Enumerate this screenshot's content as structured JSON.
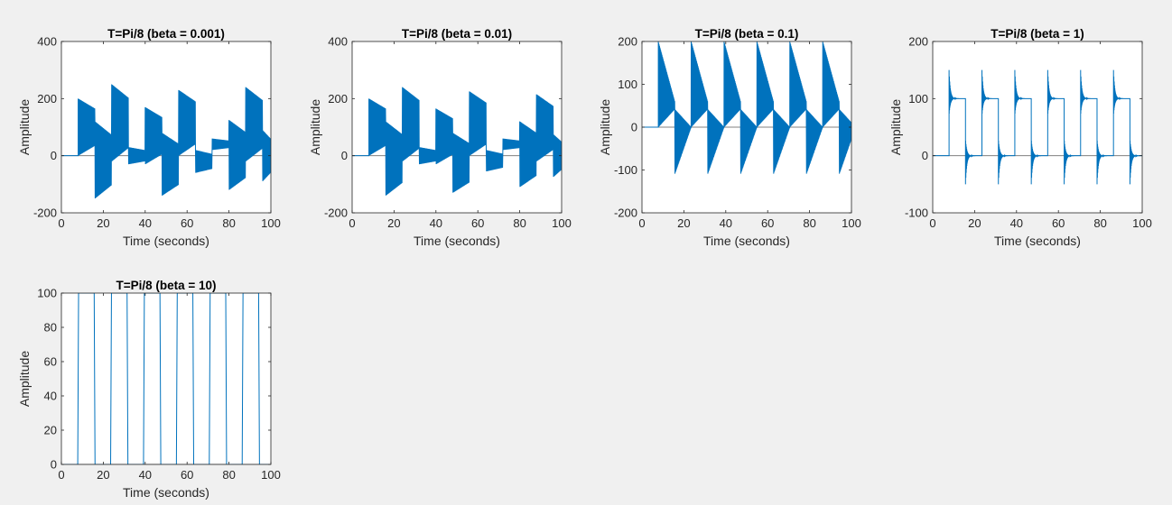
{
  "figure": {
    "background": "#f0f0f0",
    "line_color": "#0072bd",
    "baseline_color": "#808080"
  },
  "chart_data": [
    {
      "type": "line",
      "title": "T=Pi/8 (beta = 0.001)",
      "xlabel": "Time (seconds)",
      "ylabel": "Amplitude",
      "xlim": [
        0,
        100
      ],
      "ylim": [
        -200,
        400
      ],
      "xticks": [
        0,
        20,
        40,
        60,
        80,
        100
      ],
      "yticks": [
        -200,
        0,
        200,
        400
      ],
      "grid": false,
      "style": "dense-oscillation",
      "segments": [
        {
          "t0": 0,
          "t1": 8,
          "hi": 0,
          "lo": 0
        },
        {
          "t0": 8,
          "t1": 16,
          "hi": 200,
          "lo": 0
        },
        {
          "t0": 16,
          "t1": 24,
          "hi": 120,
          "lo": -150
        },
        {
          "t0": 24,
          "t1": 32,
          "hi": 250,
          "lo": -20
        },
        {
          "t0": 32,
          "t1": 40,
          "hi": 30,
          "lo": -30
        },
        {
          "t0": 40,
          "t1": 48,
          "hi": 170,
          "lo": -30
        },
        {
          "t0": 48,
          "t1": 56,
          "hi": 80,
          "lo": -140
        },
        {
          "t0": 56,
          "t1": 64,
          "hi": 230,
          "lo": 0
        },
        {
          "t0": 64,
          "t1": 72,
          "hi": 20,
          "lo": -60
        },
        {
          "t0": 72,
          "t1": 80,
          "hi": 60,
          "lo": 20
        },
        {
          "t0": 80,
          "t1": 88,
          "hi": 125,
          "lo": -120
        },
        {
          "t0": 88,
          "t1": 96,
          "hi": 240,
          "lo": -20
        },
        {
          "t0": 96,
          "t1": 100,
          "hi": 90,
          "lo": -90
        }
      ]
    },
    {
      "type": "line",
      "title": "T=Pi/8 (beta = 0.01)",
      "xlabel": "Time (seconds)",
      "ylabel": "Amplitude",
      "xlim": [
        0,
        100
      ],
      "ylim": [
        -200,
        400
      ],
      "xticks": [
        0,
        20,
        40,
        60,
        80,
        100
      ],
      "yticks": [
        -200,
        0,
        200,
        400
      ],
      "grid": false,
      "style": "dense-oscillation",
      "segments": [
        {
          "t0": 0,
          "t1": 8,
          "hi": 0,
          "lo": 0
        },
        {
          "t0": 8,
          "t1": 16,
          "hi": 200,
          "lo": 0
        },
        {
          "t0": 16,
          "t1": 24,
          "hi": 120,
          "lo": -140
        },
        {
          "t0": 24,
          "t1": 32,
          "hi": 240,
          "lo": -20
        },
        {
          "t0": 32,
          "t1": 40,
          "hi": 30,
          "lo": -30
        },
        {
          "t0": 40,
          "t1": 48,
          "hi": 165,
          "lo": -30
        },
        {
          "t0": 48,
          "t1": 56,
          "hi": 80,
          "lo": -130
        },
        {
          "t0": 56,
          "t1": 64,
          "hi": 225,
          "lo": 0
        },
        {
          "t0": 64,
          "t1": 72,
          "hi": 20,
          "lo": -55
        },
        {
          "t0": 72,
          "t1": 80,
          "hi": 60,
          "lo": 20
        },
        {
          "t0": 80,
          "t1": 88,
          "hi": 120,
          "lo": -110
        },
        {
          "t0": 88,
          "t1": 96,
          "hi": 215,
          "lo": -20
        },
        {
          "t0": 96,
          "t1": 100,
          "hi": 75,
          "lo": -75
        }
      ]
    },
    {
      "type": "line",
      "title": "T=Pi/8 (beta = 0.1)",
      "xlabel": "Time (seconds)",
      "ylabel": "Amplitude",
      "xlim": [
        0,
        100
      ],
      "ylim": [
        -200,
        200
      ],
      "xticks": [
        0,
        20,
        40,
        60,
        80,
        100
      ],
      "yticks": [
        -200,
        -100,
        0,
        100,
        200
      ],
      "grid": false,
      "style": "sawtooth-envelope",
      "period": 15.7,
      "start": 7.8,
      "peak": 200,
      "trough": -110,
      "mid_high": 60,
      "mid_low": 0
    },
    {
      "type": "line",
      "title": "T=Pi/8 (beta = 1)",
      "xlabel": "Time (seconds)",
      "ylabel": "Amplitude",
      "xlim": [
        0,
        100
      ],
      "ylim": [
        -100,
        200
      ],
      "xticks": [
        0,
        20,
        40,
        60,
        80,
        100
      ],
      "yticks": [
        -100,
        0,
        100,
        200
      ],
      "grid": false,
      "style": "damped-square",
      "period": 15.7,
      "start": 7.8,
      "high": 100,
      "low": 0,
      "overshoot": 50
    },
    {
      "type": "line",
      "title": "T=Pi/8 (beta = 10)",
      "xlabel": "Time (seconds)",
      "ylabel": "Amplitude",
      "xlim": [
        0,
        100
      ],
      "ylim": [
        0,
        100
      ],
      "xticks": [
        0,
        20,
        40,
        60,
        80,
        100
      ],
      "yticks": [
        0,
        20,
        40,
        60,
        80,
        100
      ],
      "grid": false,
      "style": "square",
      "period": 15.7,
      "start": 7.8,
      "high": 100,
      "low": 0
    }
  ]
}
